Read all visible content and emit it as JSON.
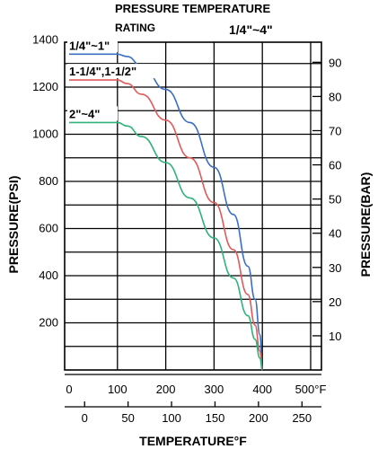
{
  "chart_data": {
    "type": "line",
    "title": "PRESSURE TEMPERATURE",
    "subtitle": "RATING",
    "size_range": "1/4\"~4\"",
    "ylabel_left": "PRESSURE(PSI)",
    "ylabel_right": "PRESSURE(BAR)",
    "xlabel": "TEMPERATURE°F",
    "x_top_ticks": [
      "0",
      "100",
      "200",
      "300",
      "400",
      "500°F"
    ],
    "x_bottom_ticks": [
      "0",
      "50",
      "100",
      "150",
      "200",
      "250"
    ],
    "y_left_ticks": [
      "200",
      "400",
      "600",
      "800",
      "1000",
      "1200",
      "1400"
    ],
    "y_right_ticks": [
      "10",
      "20",
      "30",
      "40",
      "50",
      "60",
      "70",
      "80",
      "90"
    ],
    "xlim": [
      0,
      500
    ],
    "ylim": [
      0,
      1450
    ],
    "grid": true,
    "series": [
      {
        "name": "1/4\"~1\"",
        "color": "#3a6fc4",
        "x": [
          0,
          100,
          120,
          150,
          200,
          250,
          300,
          340,
          370,
          385,
          395,
          400
        ],
        "y": [
          1340,
          1340,
          1330,
          1290,
          1190,
          1050,
          860,
          660,
          440,
          300,
          150,
          0
        ]
      },
      {
        "name": "1-1/4\",1-1/2\"",
        "color": "#e05a5a",
        "x": [
          0,
          100,
          120,
          150,
          200,
          250,
          300,
          340,
          370,
          385,
          395,
          400
        ],
        "y": [
          1230,
          1230,
          1215,
          1170,
          1060,
          900,
          710,
          510,
          320,
          190,
          80,
          0
        ]
      },
      {
        "name": "2\"~4\"",
        "color": "#2fb37a",
        "x": [
          0,
          100,
          120,
          150,
          200,
          250,
          300,
          340,
          370,
          385,
          395,
          400
        ],
        "y": [
          1050,
          1050,
          1035,
          990,
          880,
          730,
          560,
          390,
          230,
          130,
          50,
          0
        ]
      }
    ]
  }
}
